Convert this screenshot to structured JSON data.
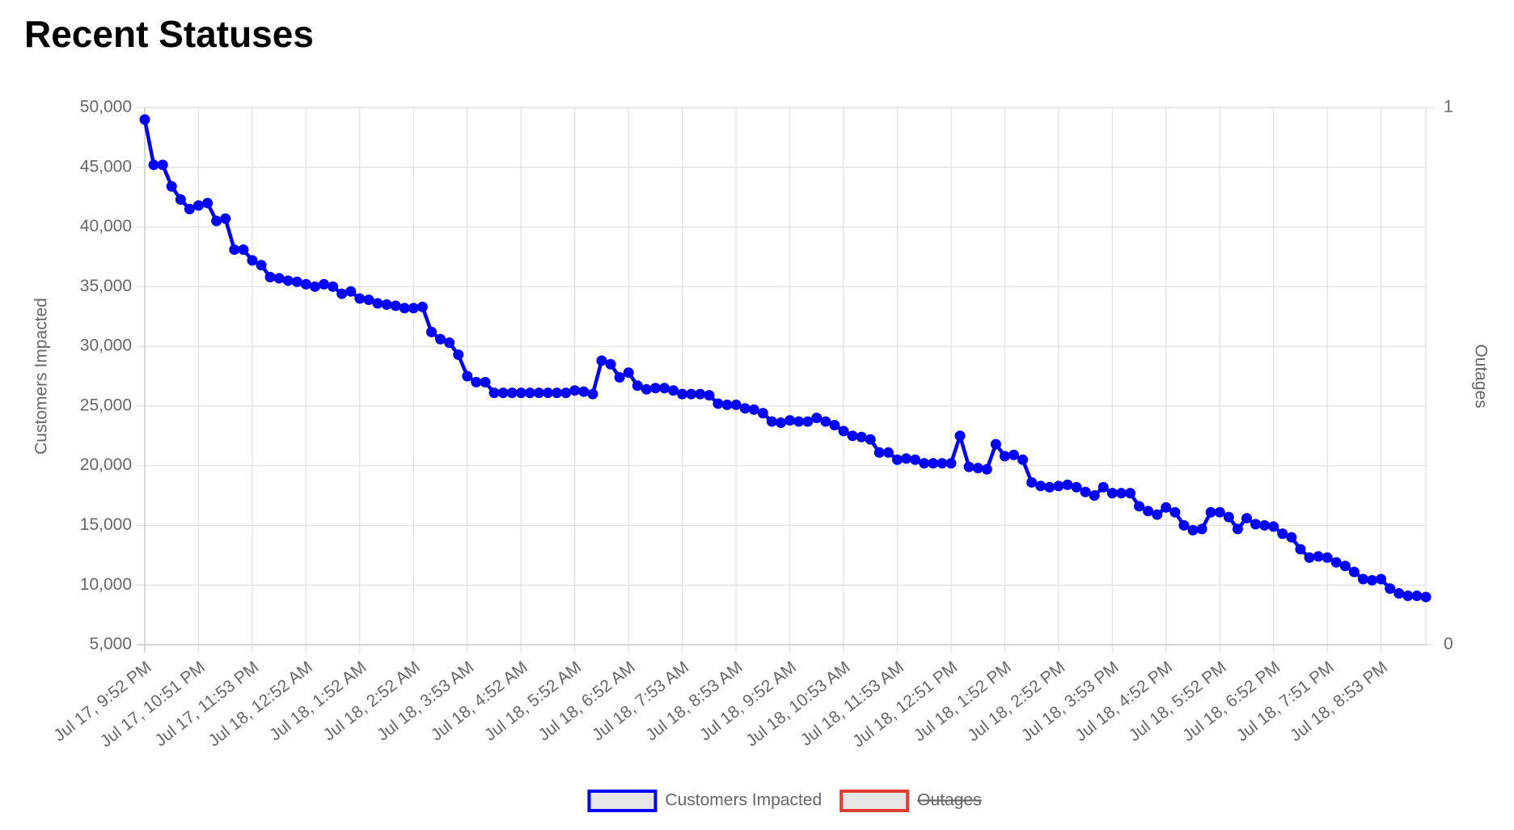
{
  "chart_data": {
    "type": "line",
    "title": "Recent Statuses",
    "ylabel": "Customers Impacted",
    "y2label": "Outages",
    "legend": "bottom",
    "grid": true,
    "categories": [
      "Jul 17, 9:52 PM",
      null,
      null,
      null,
      null,
      null,
      "Jul 17, 10:51 PM",
      null,
      null,
      null,
      null,
      null,
      "Jul 17, 11:53 PM",
      null,
      null,
      null,
      null,
      null,
      "Jul 18, 12:52 AM",
      null,
      null,
      null,
      null,
      null,
      "Jul 18, 1:52 AM",
      null,
      null,
      null,
      null,
      null,
      "Jul 18, 2:52 AM",
      null,
      null,
      null,
      null,
      null,
      "Jul 18, 3:53 AM",
      null,
      null,
      null,
      null,
      null,
      "Jul 18, 4:52 AM",
      null,
      null,
      null,
      null,
      null,
      "Jul 18, 5:52 AM",
      null,
      null,
      null,
      null,
      null,
      "Jul 18, 6:52 AM",
      null,
      null,
      null,
      null,
      null,
      "Jul 18, 7:53 AM",
      null,
      null,
      null,
      null,
      null,
      "Jul 18, 8:53 AM",
      null,
      null,
      null,
      null,
      null,
      "Jul 18, 9:52 AM",
      null,
      null,
      null,
      null,
      null,
      "Jul 18, 10:53 AM",
      null,
      null,
      null,
      null,
      null,
      "Jul 18, 11:53 AM",
      null,
      null,
      null,
      null,
      null,
      "Jul 18, 12:51 PM",
      null,
      null,
      null,
      null,
      null,
      "Jul 18, 1:52 PM",
      null,
      null,
      null,
      null,
      null,
      "Jul 18, 2:52 PM",
      null,
      null,
      null,
      null,
      null,
      "Jul 18, 3:53 PM",
      null,
      null,
      null,
      null,
      null,
      "Jul 18, 4:52 PM",
      null,
      null,
      null,
      null,
      null,
      "Jul 18, 5:52 PM",
      null,
      null,
      null,
      null,
      null,
      "Jul 18, 6:52 PM",
      null,
      null,
      null,
      null,
      null,
      "Jul 18, 7:51 PM",
      null,
      null,
      null,
      null,
      null,
      "Jul 18, 8:53 PM",
      null,
      null,
      null,
      null,
      null
    ],
    "series": [
      {
        "name": "Customers Impacted",
        "color": "#0000ff",
        "values": [
          49000,
          45200,
          45200,
          43400,
          42300,
          41500,
          41800,
          42000,
          40500,
          40700,
          38100,
          38100,
          37200,
          36800,
          35800,
          35700,
          35500,
          35400,
          35200,
          35000,
          35200,
          35000,
          34400,
          34600,
          34000,
          33900,
          33600,
          33500,
          33400,
          33200,
          33200,
          33300,
          31200,
          30600,
          30300,
          29300,
          27500,
          27000,
          27000,
          26100,
          26100,
          26100,
          26100,
          26100,
          26100,
          26100,
          26100,
          26100,
          26300,
          26200,
          26000,
          28800,
          28500,
          27400,
          27800,
          26700,
          26400,
          26500,
          26500,
          26300,
          26000,
          26000,
          26000,
          25900,
          25200,
          25100,
          25100,
          24800,
          24700,
          24400,
          23700,
          23600,
          23800,
          23700,
          23700,
          24000,
          23700,
          23400,
          22900,
          22500,
          22400,
          22200,
          21100,
          21100,
          20500,
          20600,
          20500,
          20200,
          20200,
          20200,
          20200,
          22500,
          19900,
          19800,
          19700,
          21800,
          20800,
          20900,
          20500,
          18600,
          18300,
          18200,
          18300,
          18400,
          18200,
          17800,
          17500,
          18200,
          17700,
          17700,
          17700,
          16600,
          16200,
          15900,
          16500,
          16100,
          15000,
          14600,
          14700,
          16100,
          16100,
          15700,
          14700,
          15600,
          15100,
          15000,
          14900,
          14300,
          14000,
          13000,
          12300,
          12400,
          12300,
          11900,
          11600,
          11100,
          10500,
          10400,
          10500,
          9700,
          9300,
          9100,
          9100,
          9000
        ]
      },
      {
        "name": "Outages",
        "color": "#e03c31",
        "axis": "y2",
        "hidden": true
      }
    ],
    "ylim": [
      5000,
      50000
    ],
    "yticks": [
      {
        "value": 5000,
        "label": "5,000"
      },
      {
        "value": 10000,
        "label": "10,000"
      },
      {
        "value": 15000,
        "label": "15,000"
      },
      {
        "value": 20000,
        "label": "20,000"
      },
      {
        "value": 25000,
        "label": "25,000"
      },
      {
        "value": 30000,
        "label": "30,000"
      },
      {
        "value": 35000,
        "label": "35,000"
      },
      {
        "value": 40000,
        "label": "40,000"
      },
      {
        "value": 45000,
        "label": "45,000"
      },
      {
        "value": 50000,
        "label": "50,000"
      }
    ],
    "y2lim": [
      0,
      1
    ],
    "y2ticks": [
      0,
      1
    ]
  }
}
